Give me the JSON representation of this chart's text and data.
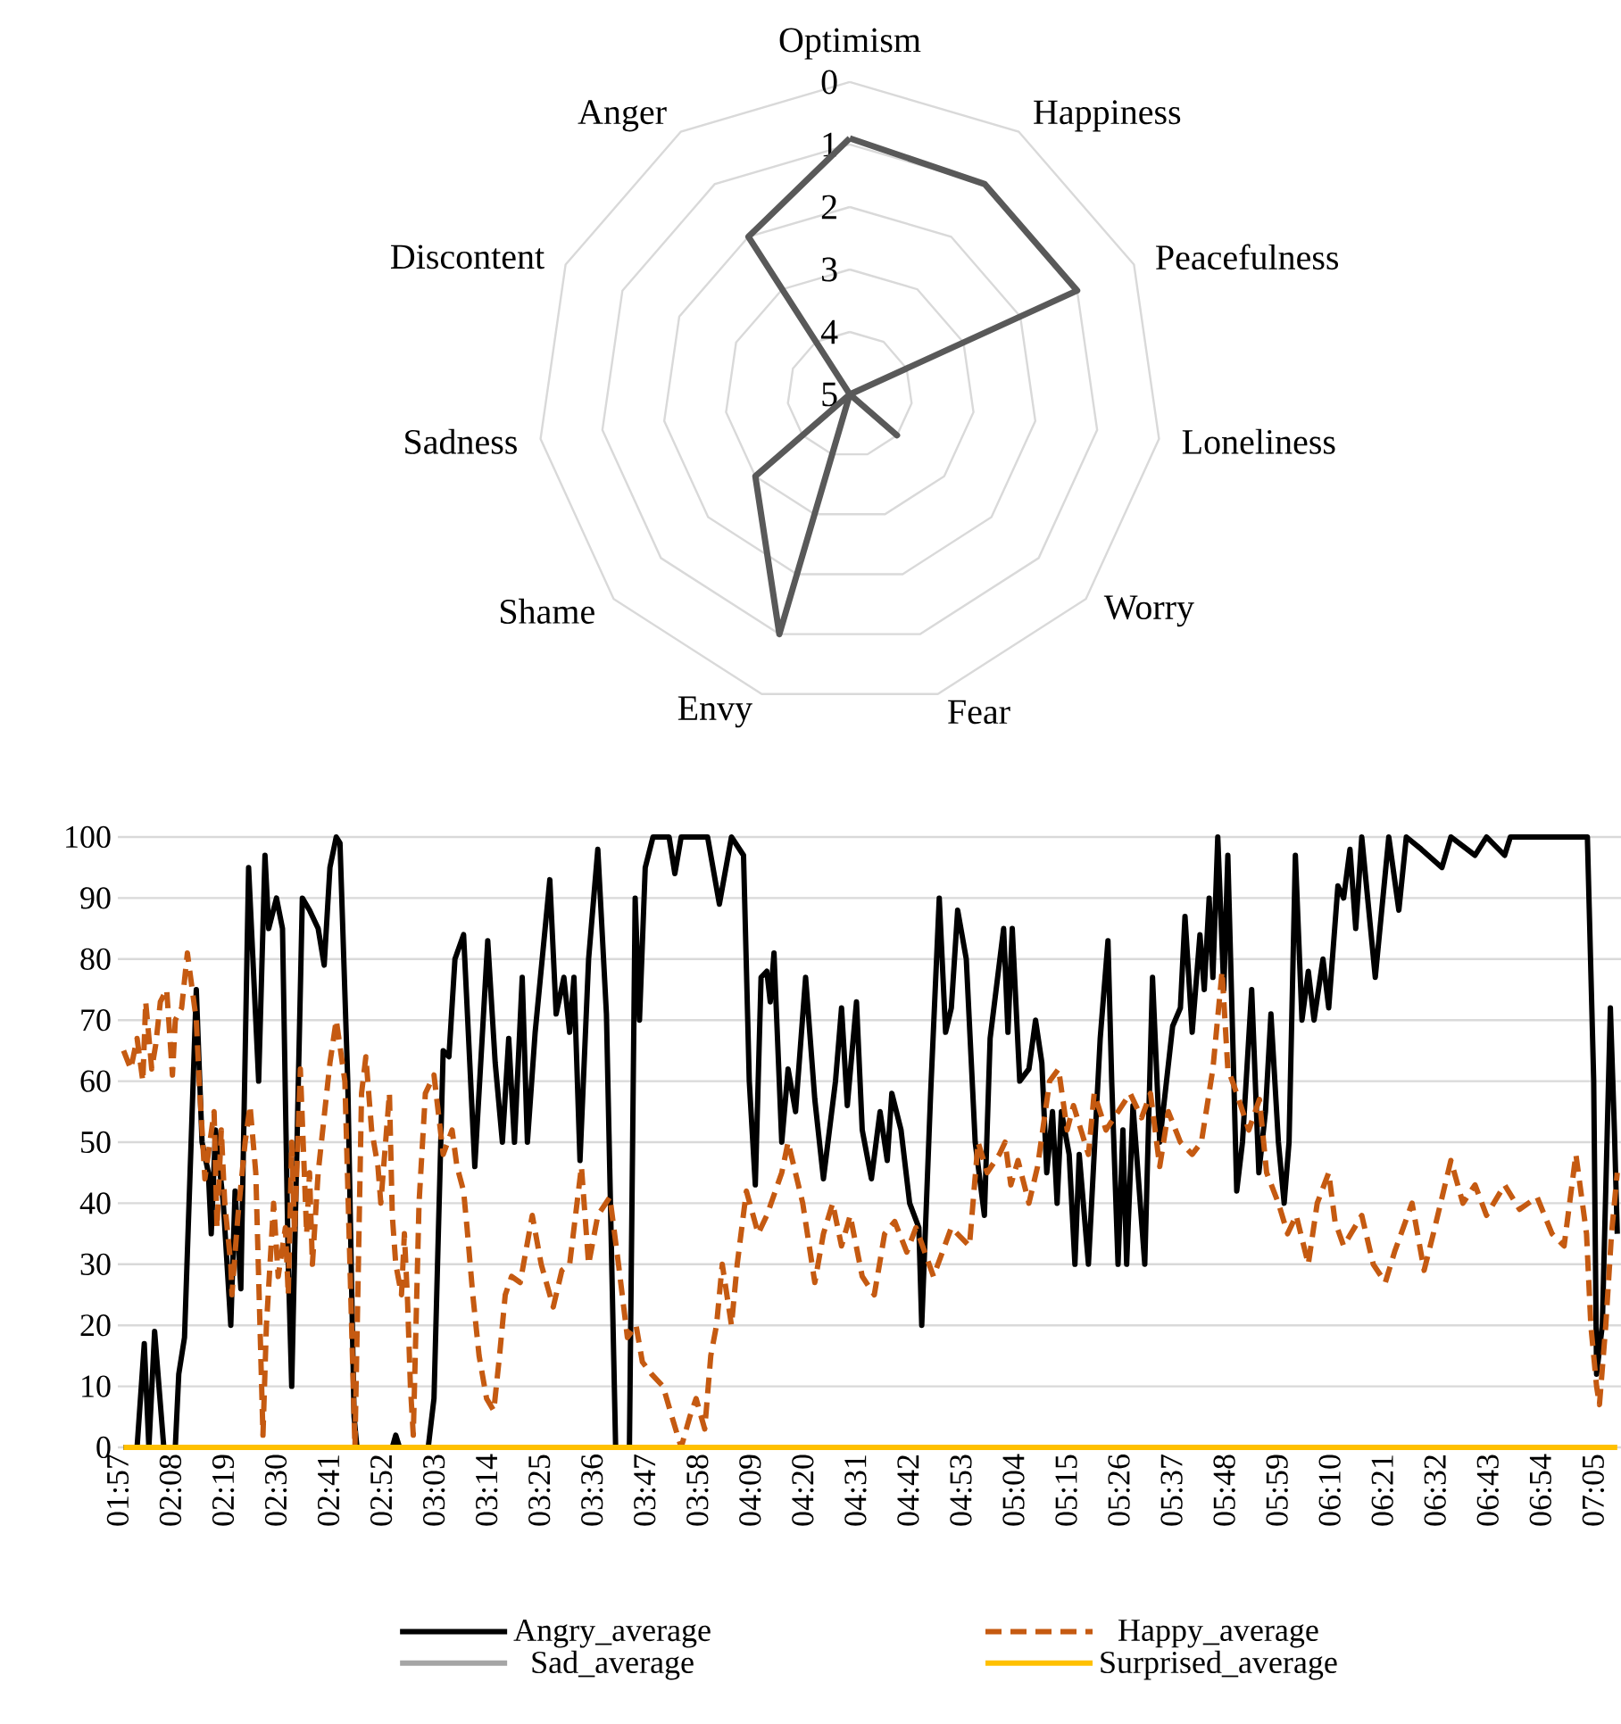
{
  "chart_data": [
    {
      "type": "radar",
      "categories": [
        "Optimism",
        "Happiness",
        "Peacefulness",
        "Loneliness",
        "Worry",
        "Fear",
        "Envy",
        "Shame",
        "Sadness",
        "Discontent",
        "Anger"
      ],
      "series": [
        {
          "color": "#595959",
          "values": [
            0.9,
            1,
            1,
            5,
            4,
            5,
            1,
            3,
            5,
            5,
            2
          ]
        }
      ],
      "ylim": [
        5,
        0
      ],
      "yticks": [
        0,
        1,
        2,
        3,
        4,
        5
      ],
      "grid": true
    },
    {
      "type": "line",
      "xlim": [
        1.95,
        7.18
      ],
      "ylim": [
        0,
        100
      ],
      "xticks": [
        {
          "value": 1.95,
          "label": "01:57"
        },
        {
          "value": 2.1333,
          "label": "02:08"
        },
        {
          "value": 2.3167,
          "label": "02:19"
        },
        {
          "value": 2.5,
          "label": "02:30"
        },
        {
          "value": 2.6833,
          "label": "02:41"
        },
        {
          "value": 2.8667,
          "label": "02:52"
        },
        {
          "value": 3.05,
          "label": "03:03"
        },
        {
          "value": 3.2333,
          "label": "03:14"
        },
        {
          "value": 3.4167,
          "label": "03:25"
        },
        {
          "value": 3.6,
          "label": "03:36"
        },
        {
          "value": 3.7833,
          "label": "03:47"
        },
        {
          "value": 3.9667,
          "label": "03:58"
        },
        {
          "value": 4.15,
          "label": "04:09"
        },
        {
          "value": 4.3333,
          "label": "04:20"
        },
        {
          "value": 4.5167,
          "label": "04:31"
        },
        {
          "value": 4.7,
          "label": "04:42"
        },
        {
          "value": 4.8833,
          "label": "04:53"
        },
        {
          "value": 5.0667,
          "label": "05:04"
        },
        {
          "value": 5.25,
          "label": "05:15"
        },
        {
          "value": 5.4333,
          "label": "05:26"
        },
        {
          "value": 5.6167,
          "label": "05:37"
        },
        {
          "value": 5.8,
          "label": "05:48"
        },
        {
          "value": 5.9833,
          "label": "05:59"
        },
        {
          "value": 6.1667,
          "label": "06:10"
        },
        {
          "value": 6.35,
          "label": "06:21"
        },
        {
          "value": 6.5333,
          "label": "06:32"
        },
        {
          "value": 6.7167,
          "label": "06:43"
        },
        {
          "value": 6.9,
          "label": "06:54"
        },
        {
          "value": 7.0833,
          "label": "07:05"
        }
      ],
      "yticks": [
        0,
        10,
        20,
        30,
        40,
        50,
        60,
        70,
        80,
        90,
        100
      ],
      "grid": "y",
      "legend": "bottom",
      "series": [
        {
          "name": "Angry_average",
          "color": "#000000",
          "line_style": "solid",
          "x": [
            1.97,
            2.017,
            2.042,
            2.058,
            2.078,
            2.11,
            2.15,
            2.162,
            2.182,
            2.223,
            2.243,
            2.265,
            2.275,
            2.29,
            2.317,
            2.343,
            2.358,
            2.378,
            2.405,
            2.44,
            2.462,
            2.475,
            2.502,
            2.523,
            2.543,
            2.555,
            2.592,
            2.617,
            2.647,
            2.668,
            2.688,
            2.71,
            2.723,
            2.75,
            2.772,
            2.782,
            2.905,
            2.917,
            2.93,
            3.03,
            3.05,
            3.082,
            3.102,
            3.123,
            3.153,
            3.192,
            3.237,
            3.263,
            3.288,
            3.31,
            3.33,
            3.357,
            3.375,
            3.402,
            3.453,
            3.475,
            3.502,
            3.522,
            3.537,
            3.558,
            3.588,
            3.62,
            3.65,
            3.682,
            3.73,
            3.75,
            3.765,
            3.785,
            3.812,
            3.868,
            3.888,
            3.91,
            4.002,
            4.043,
            4.085,
            4.127,
            4.147,
            4.168,
            4.188,
            4.208,
            4.22,
            4.233,
            4.26,
            4.282,
            4.308,
            4.343,
            4.375,
            4.405,
            4.447,
            4.468,
            4.488,
            4.52,
            4.54,
            4.572,
            4.602,
            4.627,
            4.643,
            4.675,
            4.705,
            4.737,
            4.747,
            4.778,
            4.808,
            4.83,
            4.85,
            4.872,
            4.902,
            4.933,
            4.965,
            4.985,
            5.032,
            5.047,
            5.062,
            5.088,
            5.12,
            5.143,
            5.165,
            5.182,
            5.202,
            5.218,
            5.233,
            5.26,
            5.28,
            5.295,
            5.327,
            5.368,
            5.395,
            5.408,
            5.43,
            5.447,
            5.46,
            5.482,
            5.523,
            5.55,
            5.575,
            5.62,
            5.647,
            5.663,
            5.688,
            5.715,
            5.73,
            5.747,
            5.76,
            5.777,
            5.798,
            5.812,
            5.833,
            5.843,
            5.863,
            5.895,
            5.92,
            5.943,
            5.962,
            5.988,
            6.008,
            6.025,
            6.047,
            6.07,
            6.092,
            6.112,
            6.143,
            6.163,
            6.195,
            6.215,
            6.237,
            6.257,
            6.278,
            6.325,
            6.372,
            6.407,
            6.433,
            6.485,
            6.557,
            6.588,
            6.672,
            6.712,
            6.775,
            6.795,
            7.063,
            7.085,
            7.095,
            7.115,
            7.143,
            7.157,
            7.167
          ],
          "values": [
            0,
            0,
            17,
            0,
            19,
            0,
            0,
            12,
            18,
            75,
            50,
            45,
            35,
            52,
            40,
            20,
            42,
            26,
            95,
            60,
            97,
            85,
            90,
            85,
            30,
            10,
            90,
            88,
            85,
            79,
            95,
            100,
            99,
            60,
            5,
            0,
            0,
            2,
            0,
            0,
            8,
            65,
            64,
            80,
            84,
            46,
            83,
            63,
            50,
            67,
            50,
            77,
            50,
            68,
            93,
            71,
            77,
            68,
            77,
            47,
            80,
            98,
            71,
            0,
            0,
            90,
            70,
            95,
            100,
            100,
            94,
            100,
            100,
            89,
            100,
            97,
            60,
            43,
            77,
            78,
            73,
            81,
            50,
            62,
            55,
            77,
            57,
            44,
            60,
            72,
            56,
            73,
            52,
            44,
            55,
            47,
            58,
            52,
            40,
            36,
            20,
            58,
            90,
            68,
            72,
            88,
            80,
            50,
            38,
            67,
            85,
            68,
            85,
            60,
            62,
            70,
            63,
            45,
            55,
            40,
            55,
            48,
            30,
            48,
            30,
            67,
            83,
            60,
            30,
            52,
            30,
            56,
            30,
            77,
            50,
            69,
            72,
            87,
            68,
            84,
            75,
            90,
            77,
            100,
            75,
            97,
            60,
            42,
            50,
            75,
            45,
            55,
            71,
            50,
            40,
            50,
            97,
            70,
            78,
            70,
            80,
            72,
            92,
            90,
            98,
            85,
            100,
            77,
            100,
            88,
            100,
            98,
            95,
            100,
            97,
            100,
            97,
            100,
            100,
            60,
            12,
            20,
            72,
            52,
            35
          ]
        },
        {
          "name": "Happy_average",
          "color": "#c55a11",
          "line_style": "dashed",
          "x": [
            1.97,
            1.995,
            2.017,
            2.037,
            2.047,
            2.068,
            2.082,
            2.098,
            2.12,
            2.14,
            2.15,
            2.172,
            2.192,
            2.223,
            2.233,
            2.253,
            2.285,
            2.295,
            2.31,
            2.322,
            2.343,
            2.347,
            2.368,
            2.393,
            2.41,
            2.43,
            2.455,
            2.467,
            2.492,
            2.508,
            2.533,
            2.543,
            2.555,
            2.565,
            2.585,
            2.607,
            2.617,
            2.627,
            2.647,
            2.688,
            2.71,
            2.74,
            2.775,
            2.787,
            2.798,
            2.813,
            2.833,
            2.855,
            2.865,
            2.895,
            2.905,
            2.917,
            2.937,
            2.947,
            2.958,
            2.968,
            2.978,
            2.998,
            3.02,
            3.05,
            3.082,
            3.113,
            3.13,
            3.153,
            3.165,
            3.185,
            3.207,
            3.233,
            3.258,
            3.278,
            3.298,
            3.32,
            3.35,
            3.392,
            3.423,
            3.465,
            3.495,
            3.522,
            3.563,
            3.588,
            3.62,
            3.662,
            3.692,
            3.723,
            3.753,
            3.775,
            3.807,
            3.847,
            3.878,
            3.91,
            3.94,
            3.962,
            3.992,
            4.013,
            4.033,
            4.053,
            4.085,
            4.105,
            4.137,
            4.178,
            4.208,
            4.26,
            4.282,
            4.333,
            4.375,
            4.405,
            4.437,
            4.468,
            4.498,
            4.54,
            4.582,
            4.618,
            4.653,
            4.695,
            4.727,
            4.788,
            4.85,
            4.913,
            4.943,
            4.975,
            5.017,
            5.037,
            5.057,
            5.082,
            5.12,
            5.15,
            5.192,
            5.223,
            5.253,
            5.275,
            5.327,
            5.347,
            5.388,
            5.43,
            5.472,
            5.512,
            5.543,
            5.575,
            5.605,
            5.647,
            5.688,
            5.72,
            5.74,
            5.76,
            5.792,
            5.812,
            5.843,
            5.885,
            5.922,
            5.947,
            5.988,
            6.02,
            6.05,
            6.092,
            6.123,
            6.163,
            6.185,
            6.215,
            6.278,
            6.318,
            6.36,
            6.392,
            6.453,
            6.495,
            6.527,
            6.588,
            6.63,
            6.672,
            6.712,
            6.775,
            6.827,
            6.888,
            6.94,
            6.982,
            7.023,
            7.06,
            7.075,
            7.095,
            7.105,
            7.127,
            7.147,
            7.167
          ],
          "values": [
            65,
            62,
            67,
            60,
            73,
            62,
            66,
            73,
            75,
            61,
            70,
            72,
            81,
            70,
            60,
            44,
            55,
            36,
            52,
            40,
            30,
            25,
            38,
            50,
            56,
            45,
            2,
            20,
            40,
            28,
            36,
            25,
            50,
            35,
            62,
            35,
            45,
            30,
            45,
            63,
            70,
            60,
            0,
            30,
            58,
            64,
            52,
            46,
            40,
            58,
            38,
            30,
            25,
            35,
            24,
            10,
            2,
            40,
            58,
            61,
            48,
            52,
            46,
            42,
            36,
            25,
            15,
            8,
            6,
            15,
            25,
            28,
            27,
            38,
            30,
            23,
            29,
            30,
            46,
            30,
            38,
            41,
            30,
            18,
            20,
            14,
            12,
            10,
            5,
            0,
            5,
            8,
            3,
            15,
            20,
            30,
            20,
            30,
            42,
            35,
            38,
            45,
            50,
            40,
            27,
            35,
            40,
            33,
            38,
            28,
            25,
            35,
            37,
            32,
            36,
            28,
            36,
            33,
            50,
            45,
            48,
            50,
            43,
            47,
            40,
            46,
            60,
            62,
            52,
            56,
            48,
            58,
            52,
            55,
            58,
            54,
            58,
            46,
            55,
            50,
            48,
            50,
            56,
            62,
            78,
            62,
            58,
            52,
            57,
            45,
            40,
            35,
            38,
            30,
            40,
            45,
            37,
            33,
            38,
            30,
            27,
            32,
            40,
            29,
            35,
            47,
            40,
            43,
            38,
            43,
            39,
            41,
            35,
            33,
            48,
            35,
            20,
            10,
            7,
            20,
            35,
            45
          ]
        },
        {
          "name": "Sad_average",
          "color": "#a5a5a5",
          "line_style": "solid",
          "values": [
            null
          ]
        },
        {
          "name": "Surprised_average",
          "color": "#ffc000",
          "line_style": "solid",
          "x": [
            1.97,
            7.167
          ],
          "values": [
            0,
            0
          ]
        }
      ]
    }
  ]
}
